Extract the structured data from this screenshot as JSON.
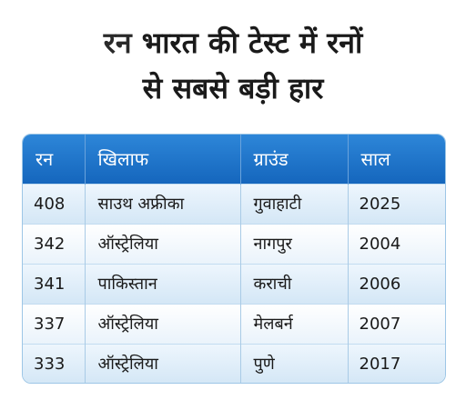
{
  "title": {
    "prefix": "रन",
    "line1": "भारत की टेस्ट में रनों",
    "line2": "से सबसे बड़ी हार"
  },
  "table": {
    "headers": [
      "रन",
      "खिलाफ",
      "ग्राउंड",
      "साल"
    ],
    "rows": [
      [
        "408",
        "साउथ अफ्रीका",
        "गुवाहाटी",
        "2025"
      ],
      [
        "342",
        "ऑस्ट्रेलिया",
        "नागपुर",
        "2004"
      ],
      [
        "341",
        "पाकिस्तान",
        "कराची",
        "2006"
      ],
      [
        "337",
        "ऑस्ट्रेलिया",
        "मेलबर्न",
        "2007"
      ],
      [
        "333",
        "ऑस्ट्रेलिया",
        "पुणे",
        "2017"
      ]
    ]
  },
  "colors": {
    "header_bg": "#1f77cc",
    "row_light": "#eaf3fb",
    "row_tint": "#d4e7f6"
  }
}
